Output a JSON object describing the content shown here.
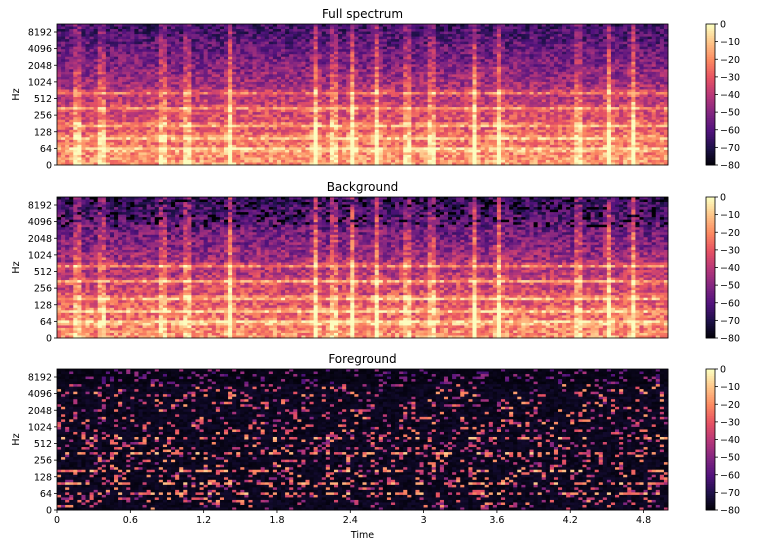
{
  "chart_data": [
    {
      "type": "heatmap",
      "title": "Full spectrum",
      "ylabel": "Hz",
      "xlabel": "",
      "show_x_ticks": false,
      "yticks": [
        "0",
        "64",
        "128",
        "256",
        "512",
        "1024",
        "2048",
        "4096",
        "8192"
      ],
      "xlim": [
        0,
        5.0
      ],
      "colorbar": {
        "ticks": [
          "0",
          "−10",
          "−20",
          "−30",
          "−40",
          "−50",
          "−60",
          "−70",
          "−80"
        ],
        "range": [
          -80,
          0
        ]
      }
    },
    {
      "type": "heatmap",
      "title": "Background",
      "ylabel": "Hz",
      "xlabel": "",
      "show_x_ticks": false,
      "yticks": [
        "0",
        "64",
        "128",
        "256",
        "512",
        "1024",
        "2048",
        "4096",
        "8192"
      ],
      "xlim": [
        0,
        5.0
      ],
      "colorbar": {
        "ticks": [
          "0",
          "−10",
          "−20",
          "−30",
          "−40",
          "−50",
          "−60",
          "−70",
          "−80"
        ],
        "range": [
          -80,
          0
        ]
      }
    },
    {
      "type": "heatmap",
      "title": "Foreground",
      "ylabel": "Hz",
      "xlabel": "Time",
      "show_x_ticks": true,
      "xticks": [
        "0",
        "0.6",
        "1.2",
        "1.8",
        "2.4",
        "3",
        "3.6",
        "4.2",
        "4.8"
      ],
      "xtick_values": [
        0,
        0.6,
        1.2,
        1.8,
        2.4,
        3.0,
        3.6,
        4.2,
        4.8
      ],
      "yticks": [
        "0",
        "64",
        "128",
        "256",
        "512",
        "1024",
        "2048",
        "4096",
        "8192"
      ],
      "xlim": [
        0,
        5.0
      ],
      "colorbar": {
        "ticks": [
          "0",
          "−10",
          "−20",
          "−30",
          "−40",
          "−50",
          "−60",
          "−70",
          "−80"
        ],
        "range": [
          -80,
          0
        ]
      }
    }
  ],
  "colormap": [
    "#000004",
    "#1d1147",
    "#51127c",
    "#822681",
    "#b73779",
    "#e75263",
    "#fc8961",
    "#fec488",
    "#fcfdbf"
  ]
}
